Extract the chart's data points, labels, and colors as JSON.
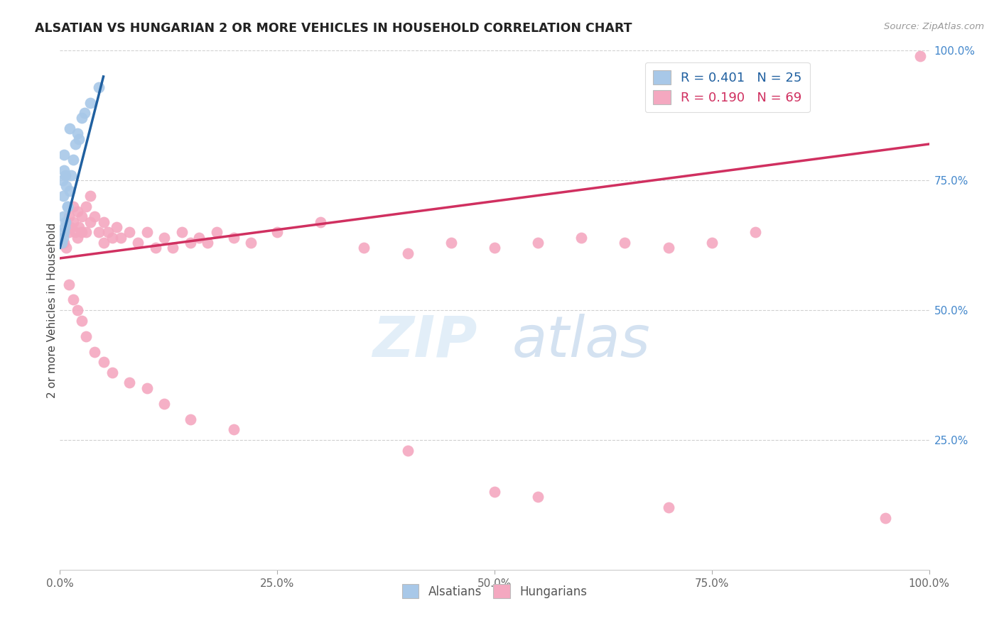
{
  "title": "ALSATIAN VS HUNGARIAN 2 OR MORE VEHICLES IN HOUSEHOLD CORRELATION CHART",
  "source": "Source: ZipAtlas.com",
  "ylabel": "2 or more Vehicles in Household",
  "legend_blue_label": "R = 0.401   N = 25",
  "legend_pink_label": "R = 0.190   N = 69",
  "legend_alsatian": "Alsatians",
  "legend_hungarian": "Hungarians",
  "alsatian_color": "#a8c8e8",
  "hungarian_color": "#f4a8c0",
  "trendline_blue": "#2060a0",
  "trendline_pink": "#d03060",
  "watermark_zip_color": "#c8dff0",
  "watermark_atlas_color": "#b0c8e0",
  "background_color": "#ffffff",
  "grid_color": "#d0d0d0",
  "right_axis_color": "#4488cc",
  "als_x": [
    0.45,
    1.1,
    0.3,
    0.5,
    0.5,
    0.4,
    0.4,
    0.6,
    0.7,
    0.9,
    1.1,
    1.3,
    1.5,
    1.8,
    2.0,
    2.2,
    2.5,
    2.8,
    0.25,
    0.35,
    0.55,
    0.65,
    0.85,
    3.5,
    4.5
  ],
  "als_y": [
    77.0,
    85.0,
    75.0,
    80.0,
    65.0,
    72.0,
    68.0,
    76.0,
    74.0,
    70.0,
    73.0,
    76.0,
    79.0,
    82.0,
    84.0,
    83.0,
    87.0,
    88.0,
    63.0,
    64.0,
    66.0,
    67.0,
    70.0,
    90.0,
    93.0
  ],
  "hun_x": [
    0.5,
    0.7,
    1.0,
    1.0,
    1.2,
    1.5,
    1.5,
    1.8,
    2.0,
    2.0,
    2.2,
    2.5,
    2.5,
    3.0,
    3.0,
    3.5,
    3.5,
    4.0,
    4.5,
    5.0,
    5.0,
    5.5,
    6.0,
    6.5,
    7.0,
    8.0,
    9.0,
    10.0,
    11.0,
    12.0,
    13.0,
    14.0,
    15.0,
    16.0,
    17.0,
    18.0,
    20.0,
    22.0,
    25.0,
    30.0,
    35.0,
    40.0,
    45.0,
    50.0,
    55.0,
    60.0,
    65.0,
    70.0,
    75.0,
    80.0,
    1.0,
    1.5,
    2.0,
    2.5,
    3.0,
    4.0,
    5.0,
    6.0,
    8.0,
    10.0,
    12.0,
    15.0,
    20.0,
    40.0,
    50.0,
    55.0,
    70.0,
    95.0,
    99.0
  ],
  "hun_y": [
    63.0,
    62.0,
    65.0,
    68.0,
    66.0,
    67.0,
    70.0,
    65.0,
    64.0,
    69.0,
    66.0,
    65.0,
    68.0,
    65.0,
    70.0,
    67.0,
    72.0,
    68.0,
    65.0,
    67.0,
    63.0,
    65.0,
    64.0,
    66.0,
    64.0,
    65.0,
    63.0,
    65.0,
    62.0,
    64.0,
    62.0,
    65.0,
    63.0,
    64.0,
    63.0,
    65.0,
    64.0,
    63.0,
    65.0,
    67.0,
    62.0,
    61.0,
    63.0,
    62.0,
    63.0,
    64.0,
    63.0,
    62.0,
    63.0,
    65.0,
    55.0,
    52.0,
    50.0,
    48.0,
    45.0,
    42.0,
    40.0,
    38.0,
    36.0,
    35.0,
    32.0,
    29.0,
    27.0,
    23.0,
    15.0,
    14.0,
    12.0,
    10.0,
    99.0
  ],
  "xmin": 0.0,
  "xmax": 100.0,
  "ymin": 0.0,
  "ymax": 100.0
}
